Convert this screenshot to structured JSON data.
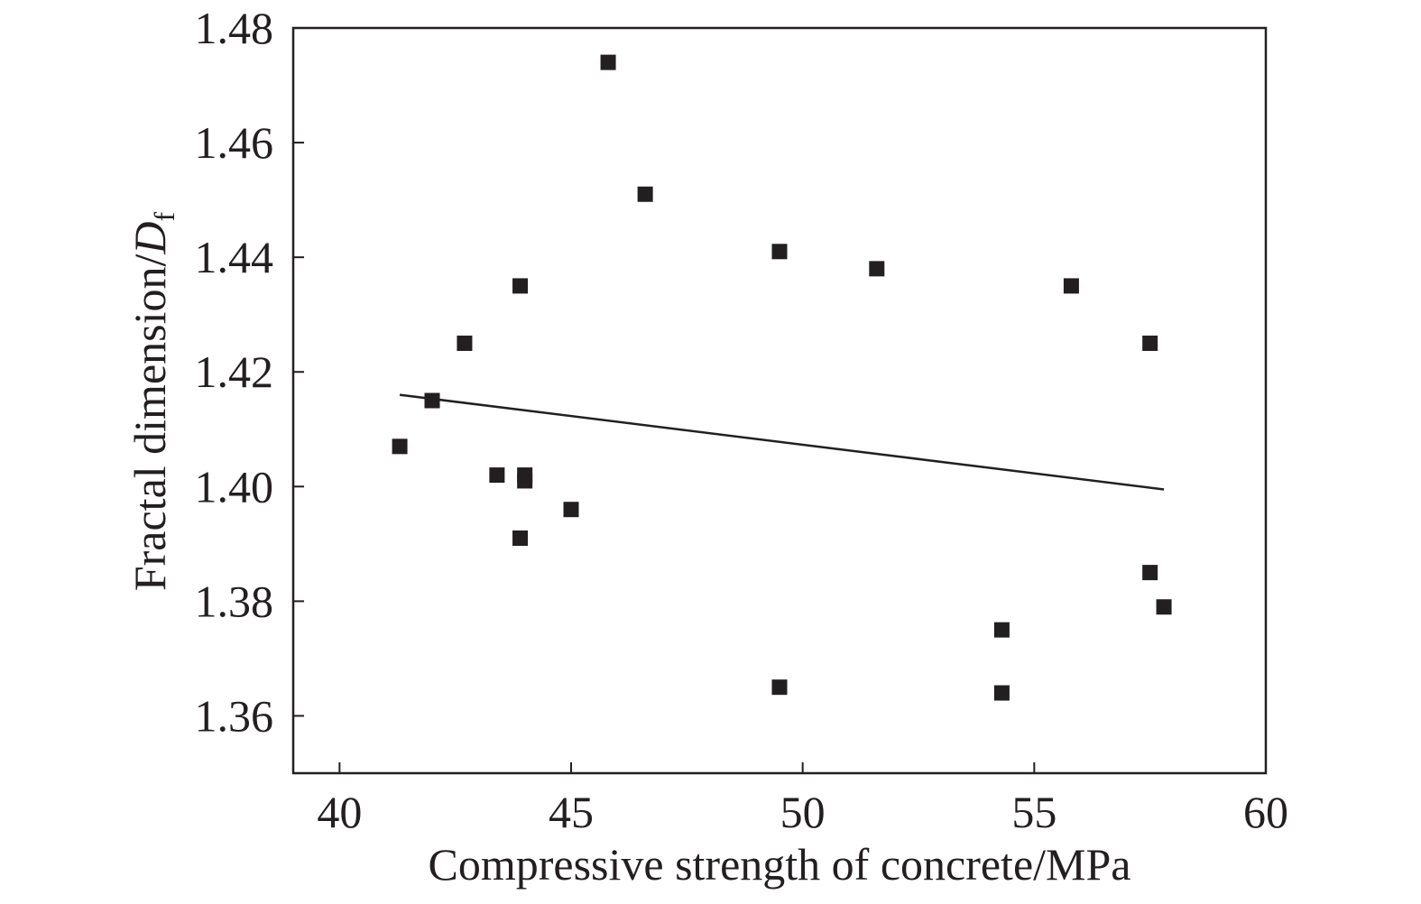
{
  "chart_data": {
    "type": "scatter",
    "xlabel": "Compressive strength of concrete/MPa",
    "ylabel": {
      "prefix": "Fractal dimension/",
      "symbol": "D",
      "subscript": "f"
    },
    "xlim": [
      39,
      60
    ],
    "ylim": [
      1.35,
      1.48
    ],
    "xticks": [
      40,
      45,
      50,
      55,
      60
    ],
    "xtick_labels": [
      "40",
      "45",
      "50",
      "55",
      "60"
    ],
    "yticks": [
      1.36,
      1.38,
      1.4,
      1.42,
      1.44,
      1.46,
      1.48
    ],
    "ytick_labels": [
      "1.36",
      "1.38",
      "1.40",
      "1.42",
      "1.44",
      "1.46",
      "1.48"
    ],
    "grid": false,
    "marker": "square",
    "colors": {
      "marker": "#231f20",
      "line": "#231f20",
      "axes": "#231f20"
    },
    "points": [
      {
        "x": 41.3,
        "y": 1.407
      },
      {
        "x": 42.0,
        "y": 1.415
      },
      {
        "x": 42.7,
        "y": 1.425
      },
      {
        "x": 43.4,
        "y": 1.402
      },
      {
        "x": 43.9,
        "y": 1.435
      },
      {
        "x": 43.9,
        "y": 1.391
      },
      {
        "x": 44.0,
        "y": 1.402
      },
      {
        "x": 44.0,
        "y": 1.401
      },
      {
        "x": 45.0,
        "y": 1.396
      },
      {
        "x": 45.8,
        "y": 1.474
      },
      {
        "x": 46.6,
        "y": 1.451
      },
      {
        "x": 49.5,
        "y": 1.441
      },
      {
        "x": 49.5,
        "y": 1.365
      },
      {
        "x": 51.6,
        "y": 1.438
      },
      {
        "x": 54.3,
        "y": 1.375
      },
      {
        "x": 54.3,
        "y": 1.364
      },
      {
        "x": 55.8,
        "y": 1.435
      },
      {
        "x": 57.5,
        "y": 1.425
      },
      {
        "x": 57.5,
        "y": 1.385
      },
      {
        "x": 57.8,
        "y": 1.379
      }
    ],
    "fit_line": {
      "x": [
        41.3,
        57.8
      ],
      "y": [
        1.416,
        1.3995
      ]
    }
  }
}
